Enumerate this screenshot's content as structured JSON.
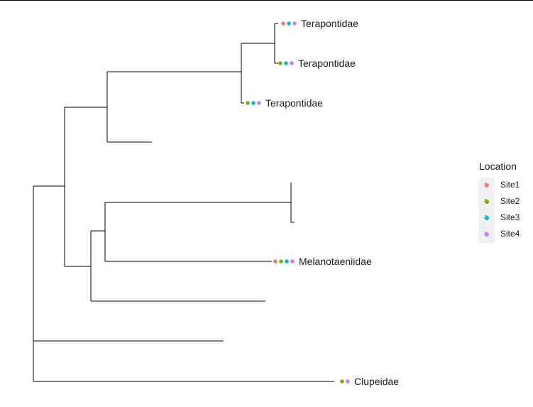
{
  "tree": {
    "tips": [
      {
        "label": "Terapontidae",
        "sites": [
          "Site1",
          "Site3",
          "Site4"
        ]
      },
      {
        "label": "Terapontidae",
        "sites": [
          "Site2",
          "Site3",
          "Site4"
        ]
      },
      {
        "label": "Terapontidae",
        "sites": [
          "Site2",
          "Site3",
          "Site4"
        ]
      },
      {
        "label": "",
        "sites": []
      },
      {
        "label": "",
        "sites": []
      },
      {
        "label": "",
        "sites": []
      },
      {
        "label": "Melanotaeniidae",
        "sites": [
          "Site1",
          "Site2",
          "Site3",
          "Site4"
        ]
      },
      {
        "label": "",
        "sites": []
      },
      {
        "label": "",
        "sites": []
      },
      {
        "label": "Clupeidae",
        "sites": [
          "Site2",
          "Site4"
        ]
      }
    ]
  },
  "legend": {
    "title": "Location",
    "items": [
      {
        "label": "Site1",
        "color": "#F8766D",
        "glyph": "a"
      },
      {
        "label": "Site2",
        "color": "#7CAE00",
        "glyph": "a"
      },
      {
        "label": "Site3",
        "color": "#00BFC4",
        "glyph": "a"
      },
      {
        "label": "Site4",
        "color": "#C77CFF",
        "glyph": "a"
      }
    ]
  }
}
